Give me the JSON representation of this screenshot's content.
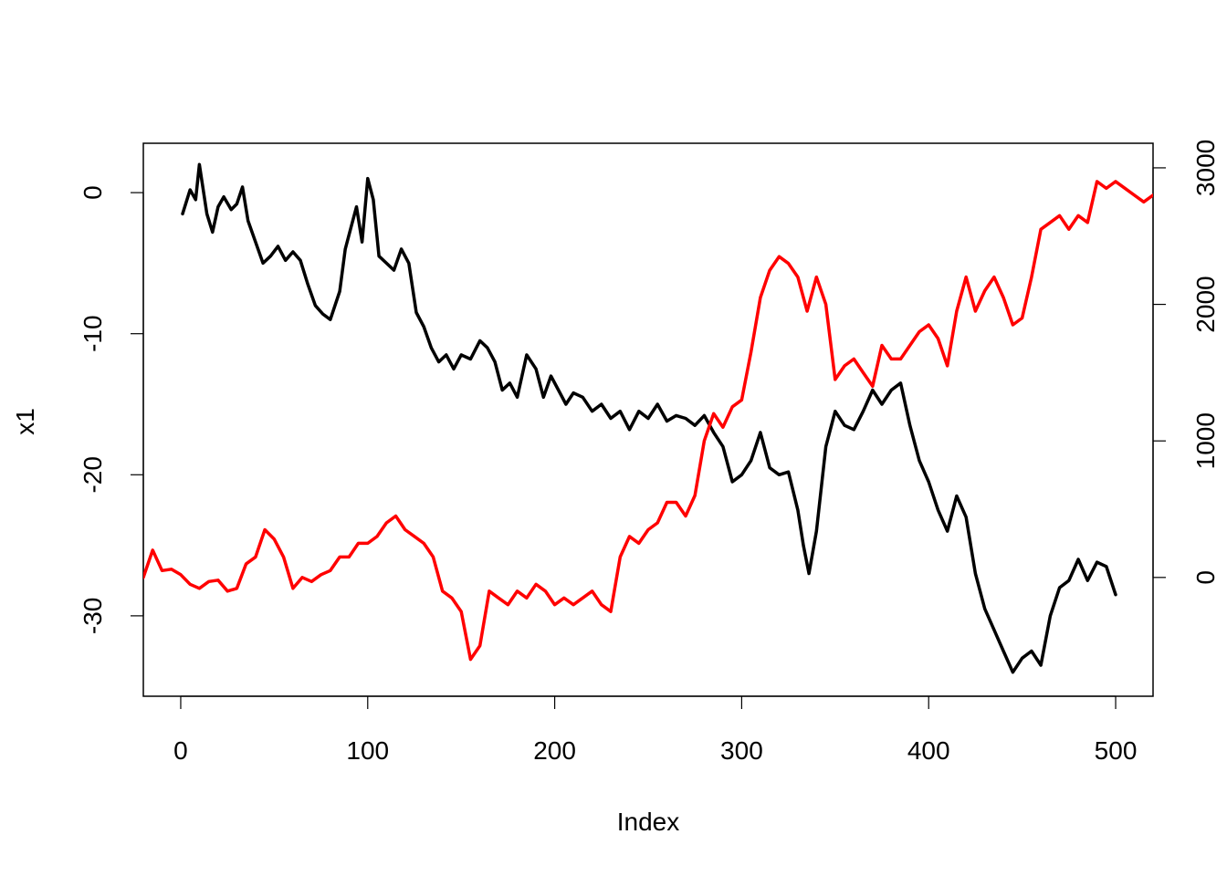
{
  "chart_data": {
    "type": "line",
    "xlabel": "Index",
    "ylabel": "x1",
    "xlim": [
      -20,
      520
    ],
    "ylim": [
      -35.7,
      3.5
    ],
    "y2lim": [
      -870,
      3180
    ],
    "x_ticks": [
      0,
      100,
      200,
      300,
      400,
      500
    ],
    "y_ticks": [
      0,
      -10,
      -20,
      -30
    ],
    "y2_ticks": [
      0,
      1000,
      2000,
      3000
    ],
    "x_tick_labels": [
      "0",
      "100",
      "200",
      "300",
      "400",
      "500"
    ],
    "y_tick_labels": [
      "0",
      "-10",
      "-20",
      "-30"
    ],
    "y2_tick_labels": [
      "0",
      "1000",
      "2000",
      "3000"
    ],
    "grid": false,
    "colors": {
      "x1": "#000000",
      "x2": "#ff0000"
    },
    "series": [
      {
        "axis": "left",
        "color": "#000000",
        "x": [
          1,
          5,
          8,
          10,
          14,
          17,
          20,
          23,
          27,
          30,
          33,
          36,
          40,
          44,
          48,
          52,
          56,
          60,
          64,
          68,
          72,
          76,
          80,
          85,
          88,
          91,
          94,
          97,
          100,
          103,
          106,
          110,
          114,
          118,
          122,
          126,
          130,
          134,
          138,
          142,
          146,
          150,
          155,
          160,
          164,
          168,
          172,
          176,
          180,
          185,
          190,
          194,
          198,
          202,
          206,
          210,
          215,
          220,
          225,
          230,
          235,
          240,
          245,
          250,
          255,
          260,
          265,
          270,
          275,
          280,
          285,
          290,
          295,
          300,
          305,
          310,
          315,
          320,
          325,
          330,
          333,
          336,
          340,
          345,
          350,
          355,
          360,
          365,
          370,
          375,
          380,
          385,
          390,
          395,
          400,
          405,
          410,
          415,
          420,
          425,
          430,
          435,
          440,
          445,
          450,
          455,
          460,
          465,
          470,
          475,
          480,
          485,
          490,
          495,
          500
        ],
        "y": [
          -1.5,
          0.2,
          -0.5,
          2.0,
          -1.5,
          -2.8,
          -1.0,
          -0.3,
          -1.2,
          -0.8,
          0.4,
          -2.0,
          -3.5,
          -5.0,
          -4.5,
          -3.8,
          -4.8,
          -4.2,
          -4.8,
          -6.5,
          -8.0,
          -8.6,
          -9.0,
          -7.0,
          -4.0,
          -2.5,
          -1.0,
          -3.5,
          1.0,
          -0.5,
          -4.5,
          -5.0,
          -5.5,
          -4.0,
          -5.0,
          -8.5,
          -9.5,
          -11.0,
          -12.0,
          -11.5,
          -12.5,
          -11.5,
          -11.8,
          -10.5,
          -11.0,
          -12.0,
          -14.0,
          -13.5,
          -14.5,
          -11.5,
          -12.5,
          -14.5,
          -13.0,
          -14.0,
          -15.0,
          -14.2,
          -14.5,
          -15.5,
          -15.0,
          -16.0,
          -15.5,
          -16.8,
          -15.5,
          -16.0,
          -15.0,
          -16.2,
          -15.8,
          -16.0,
          -16.5,
          -15.8,
          -17.0,
          -18.0,
          -20.5,
          -20.0,
          -19.0,
          -17.0,
          -19.5,
          -20.0,
          -19.8,
          -22.5,
          -25.0,
          -27.0,
          -24.0,
          -18.0,
          -15.5,
          -16.5,
          -16.8,
          -15.5,
          -14.0,
          -15.0,
          -14.0,
          -13.5,
          -16.5,
          -19.0,
          -20.5,
          -22.5,
          -24.0,
          -21.5,
          -23.0,
          -27.0,
          -29.5,
          -31.0,
          -32.5,
          -34.0,
          -33.0,
          -32.5,
          -33.5,
          -30.0,
          -28.0,
          -27.5,
          -26.0,
          -27.5,
          -26.2,
          -26.5,
          -28.5
        ]
      },
      {
        "axis": "right",
        "color": "#ff0000",
        "x": [
          -20,
          -15,
          -10,
          -5,
          0,
          5,
          10,
          15,
          20,
          25,
          30,
          35,
          40,
          45,
          50,
          55,
          60,
          65,
          70,
          75,
          80,
          85,
          90,
          95,
          100,
          105,
          110,
          115,
          120,
          125,
          130,
          135,
          140,
          145,
          150,
          155,
          160,
          165,
          170,
          175,
          180,
          185,
          190,
          195,
          200,
          205,
          210,
          215,
          220,
          225,
          230,
          235,
          240,
          245,
          250,
          255,
          260,
          265,
          270,
          275,
          280,
          285,
          290,
          295,
          300,
          305,
          310,
          315,
          320,
          325,
          330,
          335,
          340,
          345,
          350,
          355,
          360,
          365,
          370,
          375,
          380,
          385,
          390,
          395,
          400,
          405,
          410,
          415,
          420,
          425,
          430,
          435,
          440,
          445,
          450,
          455,
          460,
          465,
          470,
          475,
          480,
          485,
          490,
          495,
          500,
          505,
          510,
          515,
          520
        ],
        "y": [
          0,
          200,
          50,
          60,
          20,
          -50,
          -80,
          -30,
          -20,
          -100,
          -80,
          100,
          150,
          350,
          280,
          150,
          -80,
          0,
          -30,
          20,
          50,
          150,
          150,
          250,
          250,
          300,
          400,
          450,
          350,
          300,
          250,
          150,
          -100,
          -150,
          -250,
          -600,
          -500,
          -100,
          -150,
          -200,
          -100,
          -150,
          -50,
          -100,
          -200,
          -150,
          -200,
          -150,
          -100,
          -200,
          -250,
          150,
          300,
          250,
          350,
          400,
          550,
          550,
          450,
          600,
          1000,
          1200,
          1100,
          1250,
          1300,
          1650,
          2050,
          2250,
          2350,
          2300,
          2200,
          1950,
          2200,
          2000,
          1450,
          1550,
          1600,
          1500,
          1400,
          1700,
          1600,
          1600,
          1700,
          1800,
          1850,
          1750,
          1550,
          1950,
          2200,
          1950,
          2100,
          2200,
          2050,
          1850,
          1900,
          2200,
          2550,
          2600,
          2650,
          2550,
          2650,
          2600,
          2900,
          2850,
          2900,
          2850,
          2800,
          2750,
          2800
        ]
      }
    ]
  }
}
